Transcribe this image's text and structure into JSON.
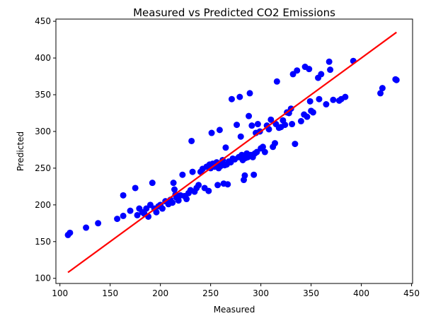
{
  "chart_data": {
    "type": "scatter",
    "title": "Measured vs Predicted CO2 Emissions",
    "xlabel": "Measured",
    "ylabel": "Predicted",
    "xlim": [
      96,
      451
    ],
    "ylim": [
      93,
      453
    ],
    "xticks": [
      100,
      150,
      200,
      250,
      300,
      350,
      400,
      450
    ],
    "yticks": [
      100,
      150,
      200,
      250,
      300,
      350,
      400,
      450
    ],
    "grid": false,
    "legend": "none",
    "colors": {
      "points": "#0000ff",
      "line": "#ff0000",
      "axis": "#000000"
    },
    "series": [
      {
        "type": "scatter",
        "points": [
          [
            108,
            159
          ],
          [
            110,
            162
          ],
          [
            126,
            169
          ],
          [
            138,
            175
          ],
          [
            157,
            181
          ],
          [
            163,
            185
          ],
          [
            163,
            213
          ],
          [
            170,
            192
          ],
          [
            175,
            223
          ],
          [
            177,
            186
          ],
          [
            179,
            195
          ],
          [
            182,
            190
          ],
          [
            184,
            188
          ],
          [
            186,
            195
          ],
          [
            188,
            184
          ],
          [
            190,
            200
          ],
          [
            192,
            230
          ],
          [
            194,
            195
          ],
          [
            196,
            190
          ],
          [
            198,
            198
          ],
          [
            200,
            200
          ],
          [
            202,
            195
          ],
          [
            205,
            205
          ],
          [
            208,
            201
          ],
          [
            210,
            207
          ],
          [
            212,
            203
          ],
          [
            213,
            230
          ],
          [
            214,
            221
          ],
          [
            215,
            214
          ],
          [
            216,
            210
          ],
          [
            218,
            206
          ],
          [
            220,
            213
          ],
          [
            222,
            241
          ],
          [
            224,
            212
          ],
          [
            226,
            208
          ],
          [
            228,
            216
          ],
          [
            230,
            220
          ],
          [
            231,
            287
          ],
          [
            232,
            245
          ],
          [
            234,
            218
          ],
          [
            236,
            223
          ],
          [
            238,
            227
          ],
          [
            240,
            245
          ],
          [
            242,
            249
          ],
          [
            244,
            223
          ],
          [
            246,
            252
          ],
          [
            248,
            219
          ],
          [
            249,
            255
          ],
          [
            250,
            250
          ],
          [
            251,
            298
          ],
          [
            252,
            256
          ],
          [
            254,
            252
          ],
          [
            256,
            258
          ],
          [
            257,
            227
          ],
          [
            258,
            250
          ],
          [
            259,
            302
          ],
          [
            260,
            253
          ],
          [
            261,
            257
          ],
          [
            262,
            261
          ],
          [
            263,
            229
          ],
          [
            264,
            254
          ],
          [
            265,
            278
          ],
          [
            266,
            255
          ],
          [
            267,
            228
          ],
          [
            268,
            259
          ],
          [
            270,
            258
          ],
          [
            271,
            344
          ],
          [
            272,
            263
          ],
          [
            274,
            262
          ],
          [
            276,
            309
          ],
          [
            278,
            265
          ],
          [
            279,
            347
          ],
          [
            280,
            293
          ],
          [
            281,
            268
          ],
          [
            282,
            261
          ],
          [
            283,
            234
          ],
          [
            284,
            240
          ],
          [
            285,
            264
          ],
          [
            286,
            270
          ],
          [
            287,
            265
          ],
          [
            288,
            321
          ],
          [
            289,
            352
          ],
          [
            290,
            268
          ],
          [
            291,
            308
          ],
          [
            292,
            265
          ],
          [
            293,
            241
          ],
          [
            294,
            270
          ],
          [
            295,
            298
          ],
          [
            296,
            272
          ],
          [
            297,
            310
          ],
          [
            299,
            300
          ],
          [
            300,
            277
          ],
          [
            302,
            279
          ],
          [
            304,
            272
          ],
          [
            306,
            308
          ],
          [
            308,
            303
          ],
          [
            310,
            316
          ],
          [
            312,
            279
          ],
          [
            314,
            284
          ],
          [
            315,
            310
          ],
          [
            316,
            368
          ],
          [
            318,
            305
          ],
          [
            320,
            306
          ],
          [
            322,
            315
          ],
          [
            324,
            309
          ],
          [
            326,
            326
          ],
          [
            328,
            325
          ],
          [
            330,
            331
          ],
          [
            331,
            310
          ],
          [
            332,
            378
          ],
          [
            334,
            283
          ],
          [
            336,
            383
          ],
          [
            340,
            314
          ],
          [
            343,
            323
          ],
          [
            344,
            388
          ],
          [
            346,
            320
          ],
          [
            348,
            385
          ],
          [
            349,
            341
          ],
          [
            350,
            328
          ],
          [
            352,
            326
          ],
          [
            357,
            373
          ],
          [
            358,
            344
          ],
          [
            360,
            378
          ],
          [
            365,
            337
          ],
          [
            368,
            395
          ],
          [
            369,
            384
          ],
          [
            372,
            343
          ],
          [
            378,
            342
          ],
          [
            380,
            344
          ],
          [
            384,
            347
          ],
          [
            392,
            396
          ],
          [
            419,
            352
          ],
          [
            421,
            359
          ],
          [
            434,
            371
          ],
          [
            435,
            370
          ]
        ]
      },
      {
        "type": "line",
        "points": [
          [
            108,
            108
          ],
          [
            435,
            435
          ]
        ]
      }
    ]
  }
}
